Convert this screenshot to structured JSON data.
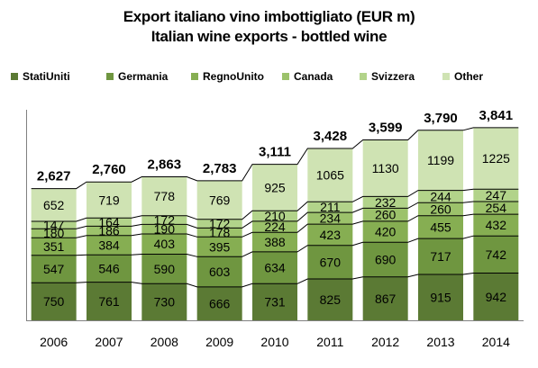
{
  "title": "Export italiano vino imbottigliato (EUR m)",
  "subtitle": "Italian wine exports - bottled wine",
  "colors": {
    "StatiUniti": "#5b7a34",
    "Germania": "#6f9640",
    "RegnoUnito": "#86ae52",
    "Canada": "#9cc26b",
    "Svizzera": "#b2d38a",
    "Other": "#cfe3b3",
    "axis": "#808080",
    "connector": "#000000"
  },
  "chart_data": {
    "type": "bar",
    "stacked": true,
    "categories": [
      "2006",
      "2007",
      "2008",
      "2009",
      "2010",
      "2011",
      "2012",
      "2013",
      "2014"
    ],
    "series": [
      {
        "name": "StatiUniti",
        "values": [
          750,
          761,
          730,
          666,
          731,
          825,
          867,
          915,
          942
        ]
      },
      {
        "name": "Germania",
        "values": [
          547,
          546,
          590,
          603,
          634,
          670,
          690,
          717,
          742
        ]
      },
      {
        "name": "RegnoUnito",
        "values": [
          351,
          384,
          403,
          395,
          388,
          423,
          420,
          455,
          432
        ]
      },
      {
        "name": "Canada",
        "values": [
          180,
          186,
          190,
          178,
          224,
          234,
          260,
          260,
          254
        ]
      },
      {
        "name": "Svizzera",
        "values": [
          147,
          164,
          172,
          172,
          210,
          211,
          232,
          244,
          247
        ]
      },
      {
        "name": "Other",
        "values": [
          652,
          719,
          778,
          769,
          925,
          1065,
          1130,
          1199,
          1225
        ]
      }
    ],
    "totals": [
      "2,627",
      "2,760",
      "2,863",
      "2,783",
      "3,111",
      "3,428",
      "3,599",
      "3,790",
      "3,841"
    ],
    "ylim": [
      0,
      4200
    ],
    "grid": false,
    "legend": "top",
    "connector_lines": true
  }
}
